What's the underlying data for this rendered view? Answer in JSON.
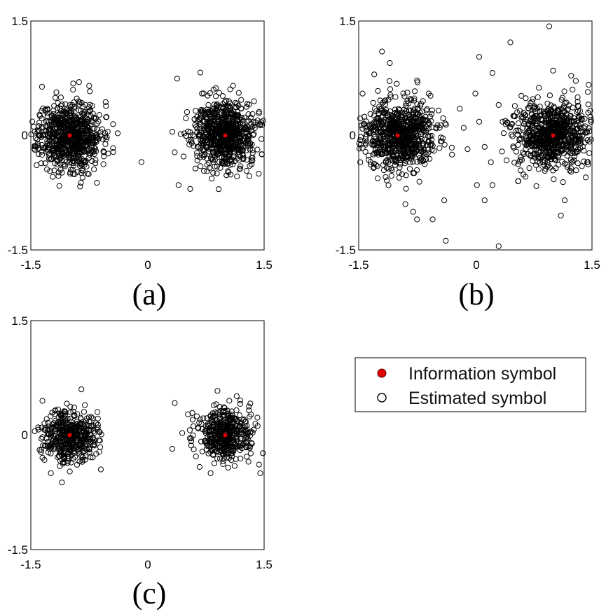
{
  "chart_data": [
    {
      "type": "scatter",
      "caption": "(a)",
      "xlim": [
        -1.5,
        1.5
      ],
      "ylim": [
        -1.5,
        1.5
      ],
      "xticks": [
        "-1.5",
        "0",
        "1.5"
      ],
      "yticks": [
        "1.5",
        "0",
        "-1.5"
      ],
      "grid": false,
      "series": [
        {
          "name": "Information symbol",
          "marker": "filled-circle",
          "color": "#e00000",
          "x": [
            -1,
            1
          ],
          "y": [
            0,
            0
          ]
        },
        {
          "name": "Estimated symbol",
          "marker": "open-circle",
          "color": "#000000",
          "clusters": [
            {
              "center": [
                -1,
                0
              ],
              "spread": [
                0.2,
                0.22
              ]
            },
            {
              "center": [
                1,
                0
              ],
              "spread": [
                0.2,
                0.22
              ]
            }
          ],
          "outliers": [
            [
              -0.75,
              0.65
            ],
            [
              -0.88,
              0.7
            ],
            [
              -0.65,
              -0.62
            ],
            [
              0.7,
              0.55
            ],
            [
              0.88,
              0.62
            ],
            [
              1.1,
              0.65
            ],
            [
              0.4,
              -0.65
            ],
            [
              0.55,
              -0.7
            ],
            [
              1.35,
              0.28
            ],
            [
              -1.45,
              0.05
            ],
            [
              0.32,
              0.05
            ],
            [
              0.35,
              -0.22
            ]
          ]
        }
      ]
    },
    {
      "type": "scatter",
      "caption": "(b)",
      "xlim": [
        -1.5,
        1.5
      ],
      "ylim": [
        -1.5,
        1.5
      ],
      "xticks": [
        "-1.5",
        "0",
        "1.5"
      ],
      "yticks": [
        "1.5",
        "0",
        "-1.5"
      ],
      "grid": false,
      "series": [
        {
          "name": "Information symbol",
          "marker": "filled-circle",
          "color": "#e00000",
          "x": [
            -1,
            1
          ],
          "y": [
            0,
            0
          ]
        },
        {
          "name": "Estimated symbol",
          "marker": "open-circle",
          "color": "#000000",
          "clusters": [
            {
              "center": [
                -1,
                0
              ],
              "spread": [
                0.24,
                0.22
              ]
            },
            {
              "center": [
                1,
                0
              ],
              "spread": [
                0.24,
                0.22
              ]
            }
          ],
          "outliers": [
            [
              -1.2,
              1.1
            ],
            [
              -1.1,
              0.95
            ],
            [
              -1.3,
              0.8
            ],
            [
              -0.75,
              0.72
            ],
            [
              -0.6,
              0.55
            ],
            [
              0.05,
              1.03
            ],
            [
              0.22,
              0.82
            ],
            [
              0.45,
              1.22
            ],
            [
              0.95,
              1.43
            ],
            [
              1.0,
              0.85
            ],
            [
              -0.4,
              -0.85
            ],
            [
              -0.55,
              -1.1
            ],
            [
              -0.8,
              -1.0
            ],
            [
              -0.75,
              -1.1
            ],
            [
              -0.9,
              -0.9
            ],
            [
              -0.38,
              -1.38
            ],
            [
              0.3,
              -1.45
            ],
            [
              0.12,
              -0.85
            ],
            [
              0.22,
              -0.65
            ],
            [
              1.1,
              -1.05
            ],
            [
              1.15,
              -0.85
            ],
            [
              0.0,
              0.55
            ],
            [
              -0.2,
              0.35
            ],
            [
              -0.3,
              -0.25
            ],
            [
              0.3,
              0.4
            ],
            [
              0.05,
              0.18
            ],
            [
              -0.1,
              -0.18
            ],
            [
              0.2,
              -0.35
            ],
            [
              0.55,
              -0.6
            ],
            [
              0.02,
              -0.65
            ],
            [
              -0.15,
              0.1
            ],
            [
              0.35,
              0.18
            ],
            [
              0.12,
              -0.15
            ],
            [
              -1.45,
              0.55
            ],
            [
              -1.48,
              -0.35
            ],
            [
              1.45,
              0.3
            ],
            [
              1.42,
              -0.55
            ]
          ]
        }
      ]
    },
    {
      "type": "scatter",
      "caption": "(c)",
      "xlim": [
        -1.5,
        1.5
      ],
      "ylim": [
        -1.5,
        1.5
      ],
      "xticks": [
        "-1.5",
        "0",
        "1.5"
      ],
      "yticks": [
        "1.5",
        "0",
        "-1.5"
      ],
      "grid": false,
      "series": [
        {
          "name": "Information symbol",
          "marker": "filled-circle",
          "color": "#e00000",
          "x": [
            -1,
            1
          ],
          "y": [
            0,
            0
          ]
        },
        {
          "name": "Estimated symbol",
          "marker": "open-circle",
          "color": "#000000",
          "clusters": [
            {
              "center": [
                -1,
                0
              ],
              "spread": [
                0.17,
                0.17
              ]
            },
            {
              "center": [
                1,
                0
              ],
              "spread": [
                0.17,
                0.17
              ]
            }
          ],
          "outliers": [
            [
              -0.85,
              0.6
            ],
            [
              -1.35,
              0.45
            ],
            [
              -1.45,
              0.05
            ],
            [
              -1.1,
              -0.62
            ],
            [
              0.9,
              0.58
            ],
            [
              1.45,
              -0.5
            ],
            [
              0.32,
              -0.18
            ],
            [
              0.35,
              0.42
            ],
            [
              -0.6,
              -0.45
            ]
          ]
        }
      ]
    }
  ],
  "legend": {
    "items": [
      {
        "label": "Information symbol",
        "marker": "filled-circle",
        "color": "#e00000"
      },
      {
        "label": "Estimated symbol",
        "marker": "open-circle",
        "color": "#000000"
      }
    ]
  }
}
